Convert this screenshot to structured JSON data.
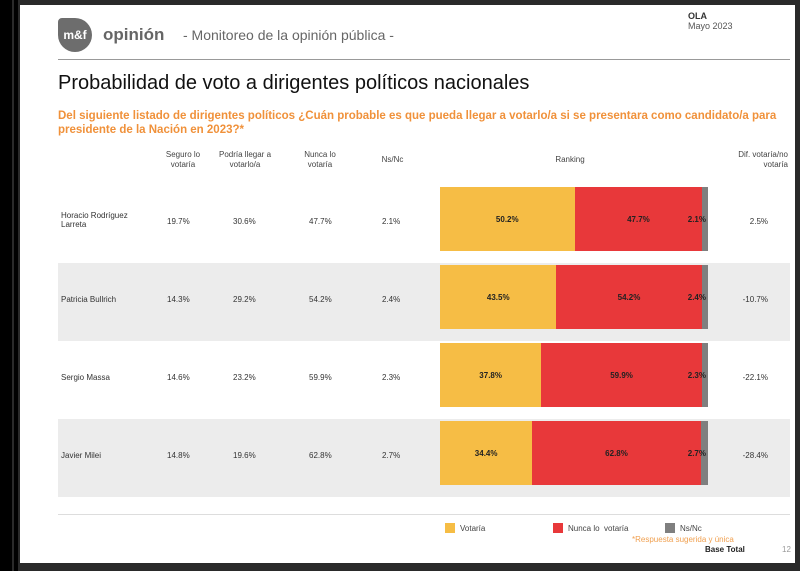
{
  "header": {
    "logo": "m&f",
    "brand": "opinión",
    "subtitle": "- Monitoreo de la opinión pública -",
    "ola": "OLA",
    "date": "Mayo 2023"
  },
  "title": "Probabilidad de voto a dirigentes políticos nacionales",
  "question": "Del siguiente listado de dirigentes políticos ¿Cuán probable es que pueda llegar a votarlo/a si se presentara como candidato/a para presidente de la Nación en 2023?*",
  "columns": {
    "seguro": "Seguro lo votaría",
    "podria": "Podría llegar a votarlo/a",
    "nunca": "Nunca lo votaría",
    "nsnc": "Ns/Nc",
    "ranking": "Ranking",
    "dif": "Dif. votaría/no votaría"
  },
  "chart_data": {
    "type": "bar",
    "stacked": true,
    "orientation": "horizontal",
    "categories": [
      "Horacio Rodríguez Larreta",
      "Patricia Bullrich",
      "Sergio Massa",
      "Javier Milei"
    ],
    "table": {
      "seguro": [
        "19.7%",
        "14.3%",
        "14.6%",
        "14.8%"
      ],
      "podria": [
        "30.6%",
        "29.2%",
        "23.2%",
        "19.6%"
      ],
      "nunca": [
        "47.7%",
        "54.2%",
        "59.9%",
        "62.8%"
      ],
      "nsnc": [
        "2.1%",
        "2.4%",
        "2.3%",
        "2.7%"
      ],
      "dif": [
        "2.5%",
        "-10.7%",
        "-22.1%",
        "-28.4%"
      ]
    },
    "series": [
      {
        "name": "Votaría",
        "color": "#f6bd45",
        "values": [
          50.2,
          43.5,
          37.8,
          34.4
        ]
      },
      {
        "name": "Nunca lo  votaría",
        "color": "#e8383a",
        "values": [
          47.7,
          54.2,
          59.9,
          62.8
        ]
      },
      {
        "name": "Ns/Nc",
        "color": "#7f7f7f",
        "values": [
          2.1,
          2.4,
          2.3,
          2.7
        ]
      }
    ]
  },
  "footer": {
    "note": "*Respuesta sugerida y única",
    "base": "Base Total",
    "page": "12"
  }
}
